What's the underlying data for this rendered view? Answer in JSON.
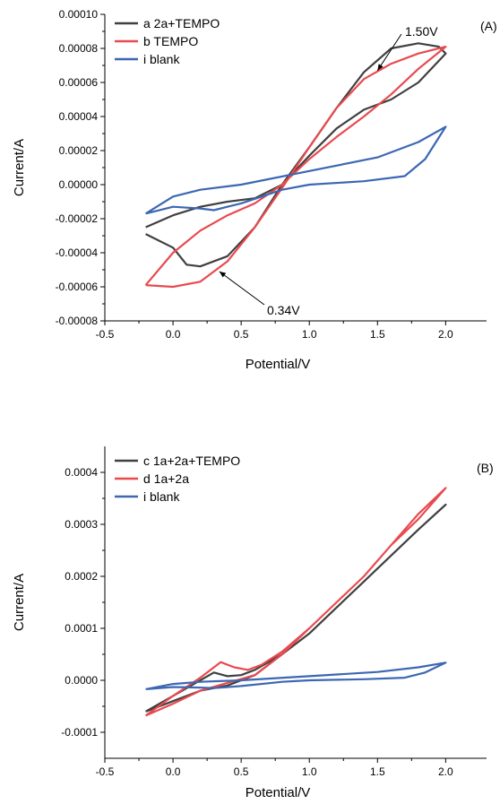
{
  "chart_data": [
    {
      "type": "line",
      "panel_label": "(A)",
      "xlabel": "Potential/V",
      "ylabel": "Current/A",
      "xlim": [
        -0.5,
        2.3
      ],
      "ylim": [
        -8e-05,
        0.0001
      ],
      "x_ticks": [
        -0.5,
        0.0,
        0.5,
        1.0,
        1.5,
        2.0
      ],
      "x_tick_labels": [
        "-0.5",
        "0.0",
        "0.5",
        "1.0",
        "1.5",
        "2.0"
      ],
      "y_ticks": [
        -8e-05,
        -6e-05,
        -4e-05,
        -2e-05,
        0.0,
        2e-05,
        4e-05,
        6e-05,
        8e-05,
        0.0001
      ],
      "y_tick_labels": [
        "-0.00008",
        "-0.00006",
        "-0.00004",
        "-0.00002",
        "0.00000",
        "0.00002",
        "0.00004",
        "0.00006",
        "0.00008",
        "0.00010"
      ],
      "grid": false,
      "legend_position": "top-left",
      "series": [
        {
          "name": "a 2a+TEMPO",
          "color": "#404040",
          "points": [
            [
              -0.2,
              -2.9e-05
            ],
            [
              0.0,
              -3.7e-05
            ],
            [
              0.1,
              -4.7e-05
            ],
            [
              0.2,
              -4.8e-05
            ],
            [
              0.4,
              -4.2e-05
            ],
            [
              0.6,
              -2.5e-05
            ],
            [
              0.8,
              0.0
            ],
            [
              1.0,
              2.2e-05
            ],
            [
              1.2,
              4.5e-05
            ],
            [
              1.4,
              6.6e-05
            ],
            [
              1.6,
              8e-05
            ],
            [
              1.8,
              8.3e-05
            ],
            [
              1.95,
              8.1e-05
            ],
            [
              2.0,
              7.7e-05
            ],
            [
              1.8,
              6e-05
            ],
            [
              1.6,
              5e-05
            ],
            [
              1.4,
              4.4e-05
            ],
            [
              1.2,
              3.3e-05
            ],
            [
              1.0,
              1.7e-05
            ],
            [
              0.8,
              0.0
            ],
            [
              0.6,
              -8e-06
            ],
            [
              0.4,
              -1e-05
            ],
            [
              0.2,
              -1.3e-05
            ],
            [
              0.0,
              -1.8e-05
            ],
            [
              -0.2,
              -2.5e-05
            ]
          ]
        },
        {
          "name": "b TEMPO",
          "color": "#e84a4f",
          "points": [
            [
              -0.2,
              -5.9e-05
            ],
            [
              0.0,
              -6e-05
            ],
            [
              0.2,
              -5.7e-05
            ],
            [
              0.4,
              -4.5e-05
            ],
            [
              0.6,
              -2.5e-05
            ],
            [
              0.8,
              -2e-06
            ],
            [
              1.0,
              2.2e-05
            ],
            [
              1.2,
              4.5e-05
            ],
            [
              1.4,
              6.2e-05
            ],
            [
              1.6,
              7.1e-05
            ],
            [
              1.8,
              7.7e-05
            ],
            [
              2.0,
              8.1e-05
            ],
            [
              1.8,
              6.8e-05
            ],
            [
              1.6,
              5.3e-05
            ],
            [
              1.4,
              4e-05
            ],
            [
              1.2,
              2.8e-05
            ],
            [
              1.0,
              1.5e-05
            ],
            [
              0.8,
              0.0
            ],
            [
              0.6,
              -1.1e-05
            ],
            [
              0.4,
              -1.8e-05
            ],
            [
              0.2,
              -2.7e-05
            ],
            [
              0.0,
              -4e-05
            ],
            [
              -0.2,
              -5.9e-05
            ]
          ]
        },
        {
          "name": "i blank",
          "color": "#3c67b3",
          "points": [
            [
              -0.2,
              -1.7e-05
            ],
            [
              0.0,
              -1.3e-05
            ],
            [
              0.2,
              -1.4e-05
            ],
            [
              0.3,
              -1.5e-05
            ],
            [
              0.5,
              -1.1e-05
            ],
            [
              0.8,
              -3e-06
            ],
            [
              1.0,
              0.0
            ],
            [
              1.4,
              2e-06
            ],
            [
              1.7,
              5e-06
            ],
            [
              1.85,
              1.5e-05
            ],
            [
              2.0,
              3.4e-05
            ],
            [
              1.8,
              2.5e-05
            ],
            [
              1.5,
              1.6e-05
            ],
            [
              1.0,
              8e-06
            ],
            [
              0.5,
              0.0
            ],
            [
              0.2,
              -3e-06
            ],
            [
              0.0,
              -7e-06
            ],
            [
              -0.2,
              -1.7e-05
            ]
          ]
        }
      ],
      "annotations": [
        {
          "text": "1.50V",
          "target": [
            1.5,
            6.7e-05
          ]
        },
        {
          "text": "0.34V",
          "target": [
            0.34,
            -5.1e-05
          ]
        }
      ]
    },
    {
      "type": "line",
      "panel_label": "(B)",
      "xlabel": "Potential/V",
      "ylabel": "Current/A",
      "xlim": [
        -0.5,
        2.3
      ],
      "ylim": [
        -0.00015,
        0.00045
      ],
      "x_ticks": [
        -0.5,
        0.0,
        0.5,
        1.0,
        1.5,
        2.0
      ],
      "x_tick_labels": [
        "-0.5",
        "0.0",
        "0.5",
        "1.0",
        "1.5",
        "2.0"
      ],
      "y_ticks": [
        -0.0001,
        0.0,
        0.0001,
        0.0002,
        0.0003,
        0.0004
      ],
      "y_tick_labels": [
        "-0.0001",
        "0.0000",
        "0.0001",
        "0.0002",
        "0.0003",
        "0.0004"
      ],
      "grid": false,
      "legend_position": "top-left",
      "series": [
        {
          "name": "c 1a+2a+TEMPO",
          "color": "#404040",
          "points": [
            [
              -0.2,
              -6e-05
            ],
            [
              0.0,
              -3e-05
            ],
            [
              0.2,
              0.0
            ],
            [
              0.3,
              1.5e-05
            ],
            [
              0.4,
              8e-06
            ],
            [
              0.5,
              1e-05
            ],
            [
              0.6,
              2e-05
            ],
            [
              0.8,
              5e-05
            ],
            [
              1.0,
              9e-05
            ],
            [
              1.2,
              0.00014
            ],
            [
              1.4,
              0.00019
            ],
            [
              1.6,
              0.00024
            ],
            [
              1.8,
              0.00029
            ],
            [
              2.0,
              0.000338
            ],
            [
              1.8,
              0.00029
            ],
            [
              1.6,
              0.00024
            ],
            [
              1.4,
              0.00019
            ],
            [
              1.2,
              0.00014
            ],
            [
              1.0,
              9e-05
            ],
            [
              0.8,
              5e-05
            ],
            [
              0.6,
              1e-05
            ],
            [
              0.4,
              -1e-05
            ],
            [
              0.2,
              -2e-05
            ],
            [
              0.0,
              -4e-05
            ],
            [
              -0.2,
              -6e-05
            ]
          ]
        },
        {
          "name": "d 1a+2a",
          "color": "#e84a4f",
          "points": [
            [
              -0.2,
              -6.8e-05
            ],
            [
              0.0,
              -3e-05
            ],
            [
              0.2,
              5e-06
            ],
            [
              0.35,
              3.5e-05
            ],
            [
              0.45,
              2.5e-05
            ],
            [
              0.55,
              2e-05
            ],
            [
              0.65,
              3e-05
            ],
            [
              0.8,
              5.5e-05
            ],
            [
              1.0,
              0.0001
            ],
            [
              1.2,
              0.00015
            ],
            [
              1.4,
              0.0002
            ],
            [
              1.6,
              0.00026
            ],
            [
              1.8,
              0.00031
            ],
            [
              2.0,
              0.00037
            ],
            [
              1.8,
              0.00032
            ],
            [
              1.6,
              0.00026
            ],
            [
              1.4,
              0.0002
            ],
            [
              1.2,
              0.00015
            ],
            [
              1.0,
              0.0001
            ],
            [
              0.8,
              5e-05
            ],
            [
              0.6,
              1e-05
            ],
            [
              0.4,
              -5e-06
            ],
            [
              0.2,
              -2e-05
            ],
            [
              0.0,
              -4.5e-05
            ],
            [
              -0.2,
              -6.8e-05
            ]
          ]
        },
        {
          "name": "i  blank",
          "color": "#3c67b3",
          "points": [
            [
              -0.2,
              -1.7e-05
            ],
            [
              0.0,
              -7e-06
            ],
            [
              0.2,
              -3e-06
            ],
            [
              0.5,
              0.0
            ],
            [
              1.0,
              8e-06
            ],
            [
              1.5,
              1.6e-05
            ],
            [
              1.8,
              2.5e-05
            ],
            [
              2.0,
              3.4e-05
            ],
            [
              1.85,
              1.5e-05
            ],
            [
              1.7,
              5e-06
            ],
            [
              1.4,
              2e-06
            ],
            [
              1.0,
              0.0
            ],
            [
              0.8,
              -3e-06
            ],
            [
              0.5,
              -1.1e-05
            ],
            [
              0.3,
              -1.5e-05
            ],
            [
              0.2,
              -1.4e-05
            ],
            [
              0.0,
              -1.3e-05
            ],
            [
              -0.2,
              -1.7e-05
            ]
          ]
        }
      ]
    }
  ]
}
